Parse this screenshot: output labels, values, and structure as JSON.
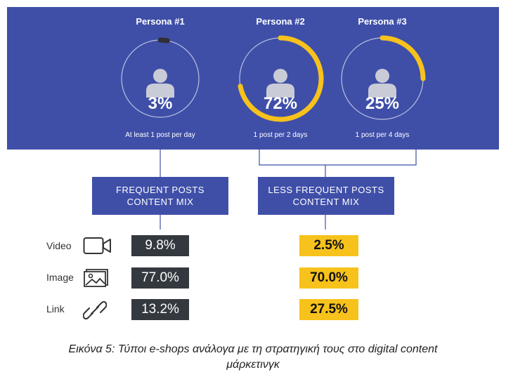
{
  "colors": {
    "panel_bg": "#3f4fa8",
    "progress_dark": "#2f2f35",
    "progress_yellow": "#f7c21b",
    "ring_track": "#b9bfe0",
    "person_icon": "#c9cbd6",
    "dark_box": "#34383f",
    "yellow_box": "#f7c21b"
  },
  "personas": [
    {
      "title": "Persona #1",
      "percent_label": "3%",
      "share": 0.03,
      "caption": "At least 1 post per day",
      "ring_style": "dark"
    },
    {
      "title": "Persona #2",
      "percent_label": "72%",
      "share": 0.72,
      "caption": "1 post per 2 days",
      "ring_style": "yellow"
    },
    {
      "title": "Persona #3",
      "percent_label": "25%",
      "share": 0.25,
      "caption": "1 post per 4 days",
      "ring_style": "yellow"
    }
  ],
  "mix_boxes": [
    {
      "line1": "FREQUENT POSTS",
      "line2": "CONTENT MIX"
    },
    {
      "line1": "LESS FREQUENT POSTS",
      "line2": "CONTENT MIX"
    }
  ],
  "content_types": [
    {
      "label": "Video",
      "icon": "video-camera-icon",
      "frequent": "9.8%",
      "less_frequent": "2.5%"
    },
    {
      "label": "Image",
      "icon": "image-icon",
      "frequent": "77.0%",
      "less_frequent": "70.0%"
    },
    {
      "label": "Link",
      "icon": "link-icon",
      "frequent": "13.2%",
      "less_frequent": "27.5%"
    }
  ],
  "caption": {
    "line1": "Εικόνα 5: Τύποι e-shops ανάλογα με τη στρατηγική τους στο digital content",
    "line2": "μάρκετινγκ"
  }
}
